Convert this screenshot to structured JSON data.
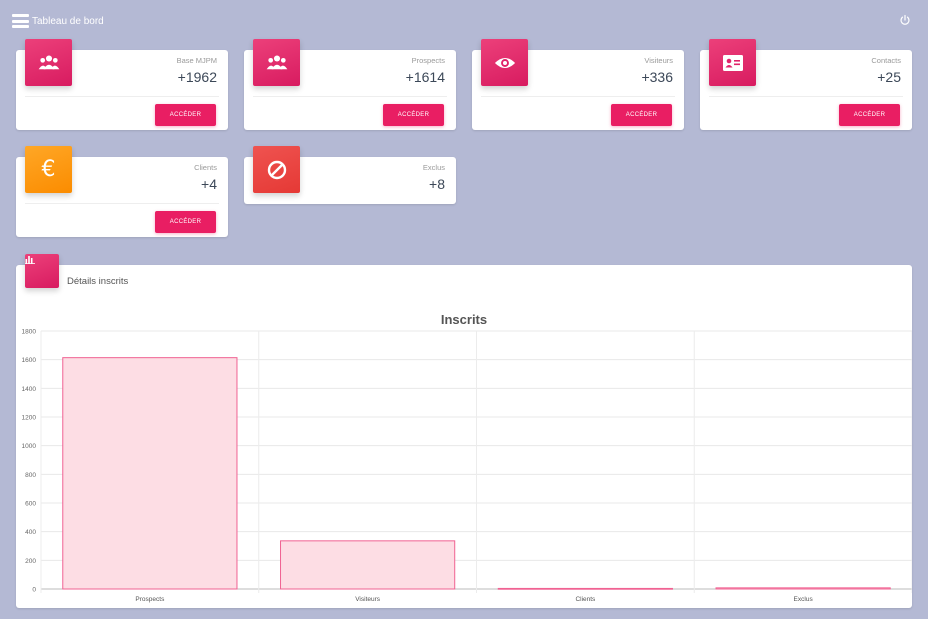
{
  "header": {
    "title": "Tableau de bord"
  },
  "cards": [
    {
      "label": "Base MJPM",
      "value": "+1962",
      "button": "ACCÉDER",
      "icon": "users-icon",
      "color": "#e91e63"
    },
    {
      "label": "Prospects",
      "value": "+1614",
      "button": "ACCÉDER",
      "icon": "users-icon",
      "color": "#e91e63"
    },
    {
      "label": "Visiteurs",
      "value": "+336",
      "button": "ACCÉDER",
      "icon": "eye-icon",
      "color": "#e91e63"
    },
    {
      "label": "Contacts",
      "value": "+25",
      "button": "ACCÉDER",
      "icon": "contact-card-icon",
      "color": "#e91e63"
    },
    {
      "label": "Clients",
      "value": "+4",
      "button": "ACCÉDER",
      "icon": "euro-icon",
      "color": "#fb8c00"
    },
    {
      "label": "Exclus",
      "value": "+8",
      "icon": "block-icon",
      "color": "#e53935"
    }
  ],
  "details": {
    "title": "Détails inscrits",
    "icon": "chart-icon"
  },
  "chart_data": {
    "type": "bar",
    "title": "Inscrits",
    "categories": [
      "Prospects",
      "Visiteurs",
      "Clients",
      "Exclus"
    ],
    "values": [
      1614,
      336,
      4,
      8
    ],
    "ylim": [
      0,
      1800
    ],
    "yticks": [
      "0",
      "200",
      "400",
      "600",
      "800",
      "1000",
      "1200",
      "1400",
      "1600",
      "1800"
    ],
    "grid": true,
    "bar_fill": "#fddde4",
    "bar_stroke": "#f06292"
  }
}
